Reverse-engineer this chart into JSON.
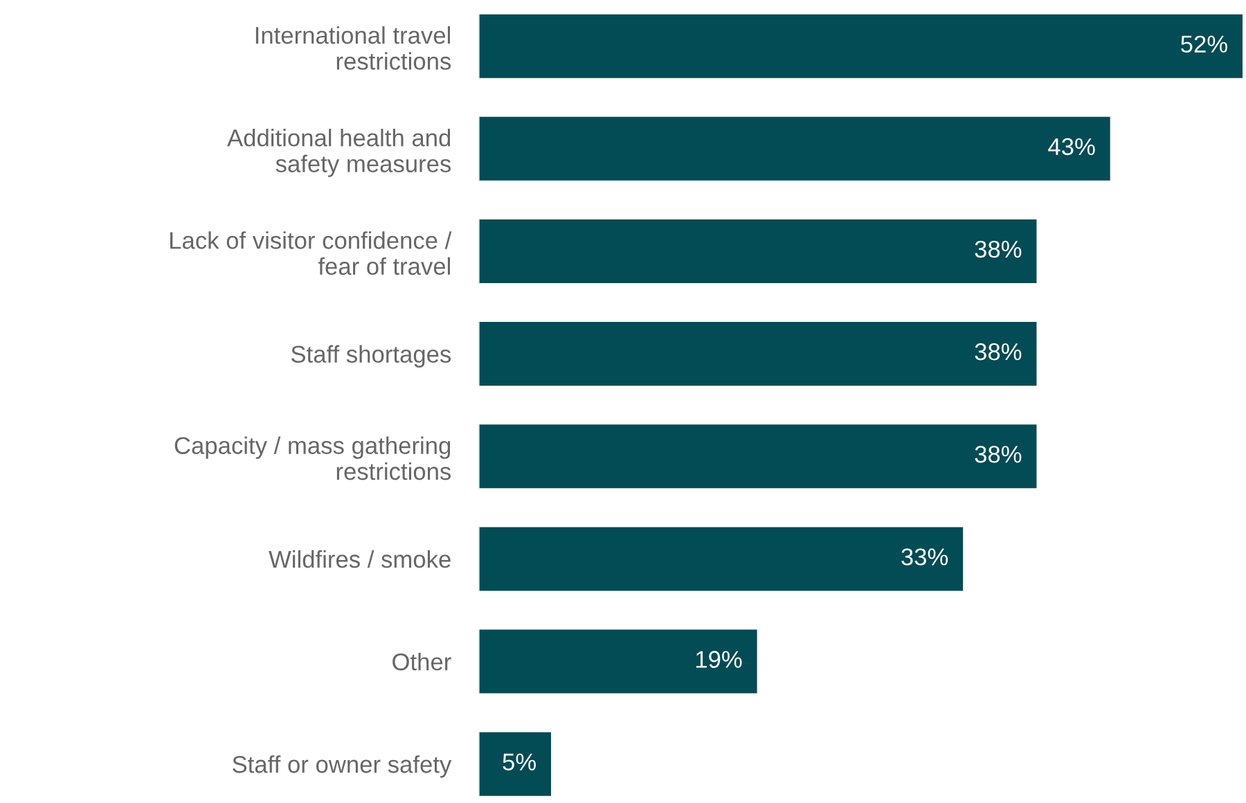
{
  "chart_data": {
    "type": "bar",
    "orientation": "horizontal",
    "categories": [
      "International travel\nrestrictions",
      "Additional health and\nsafety measures",
      "Lack of visitor confidence /\nfear of travel",
      "Staff shortages",
      "Capacity / mass gathering\nrestrictions",
      "Wildfires / smoke",
      "Other",
      "Staff or owner safety"
    ],
    "values": [
      52,
      43,
      38,
      38,
      38,
      33,
      19,
      5
    ],
    "value_labels": [
      "52%",
      "43%",
      "38%",
      "38%",
      "38%",
      "33%",
      "19%",
      "5%"
    ],
    "color": "#034b55",
    "grid": false,
    "legend": false
  }
}
